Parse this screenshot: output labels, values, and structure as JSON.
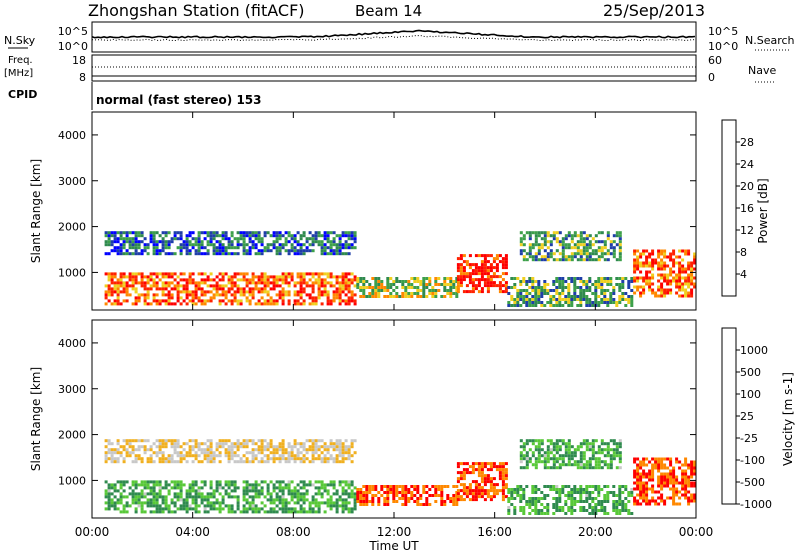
{
  "header": {
    "station": "Zhongshan Station (fitACF)",
    "beam": "Beam 14",
    "date": "25/Sep/2013"
  },
  "noise_panel": {
    "left_label": "N.Sky",
    "right_label": "N.Search",
    "left_ticks": [
      "10^5",
      "10^0"
    ],
    "right_ticks": [
      "10^5",
      "10^0"
    ]
  },
  "freq_panel": {
    "left_label_line1": "Freq.",
    "left_label_line2": "[MHz]",
    "right_label": "Nave",
    "left_ticks": [
      "18",
      "8"
    ],
    "right_ticks": [
      "60",
      "0"
    ]
  },
  "cpid": {
    "label": "CPID",
    "text": "normal (fast stereo) 153"
  },
  "power_panel": {
    "ylabel": "Slant Range [km]",
    "yticks": [
      "4000",
      "3000",
      "2000",
      "1000"
    ],
    "colorbar_label": "Power [dB]",
    "colorbar_ticks": [
      "28",
      "24",
      "20",
      "16",
      "12",
      "8",
      "4"
    ],
    "colors": [
      "#0000ff",
      "#1e3ea8",
      "#2f8a4e",
      "#3da04a",
      "#f0d020",
      "#ff8800",
      "#ff2200",
      "#ff0000"
    ]
  },
  "velocity_panel": {
    "ylabel": "Slant Range [km]",
    "yticks": [
      "4000",
      "3000",
      "2000",
      "1000"
    ],
    "colorbar_label": "Velocity [m s-1]",
    "colorbar_ticks": [
      "1000",
      "500",
      "100",
      "25",
      "-25",
      "-100",
      "-500",
      "-1000"
    ],
    "colors": [
      "#1e3ea8",
      "#2e5cb8",
      "#2f8a4e",
      "#58c838",
      "#c8c8c8",
      "#f0b020",
      "#ff8800",
      "#ff0000"
    ]
  },
  "x_axis": {
    "label": "Time UT",
    "ticks": [
      "00:00",
      "04:00",
      "08:00",
      "12:00",
      "16:00",
      "20:00",
      "00:00"
    ]
  },
  "chart_data": {
    "type": "heatmap",
    "x_range_hours": [
      0,
      24
    ],
    "y_range_km": [
      180,
      4500
    ],
    "power_colorbar_db": [
      4,
      8,
      12,
      16,
      20,
      24,
      28
    ],
    "velocity_colorbar_ms": [
      1000,
      500,
      100,
      25,
      -25,
      -100,
      -500,
      -1000
    ],
    "scatter_regions": [
      {
        "t_start": 0.5,
        "t_end": 10.5,
        "range_start": 300,
        "range_end": 1000,
        "power_db": 24,
        "velocity_ms": 100
      },
      {
        "t_start": 0.5,
        "t_end": 10.5,
        "range_start": 1400,
        "range_end": 1900,
        "power_db": 8,
        "velocity_ms": -25
      },
      {
        "t_start": 10.5,
        "t_end": 14.5,
        "range_start": 500,
        "range_end": 900,
        "power_db": 16,
        "velocity_ms": -500
      },
      {
        "t_start": 14.5,
        "t_end": 16.5,
        "range_start": 600,
        "range_end": 1400,
        "power_db": 28,
        "velocity_ms": -500
      },
      {
        "t_start": 16.5,
        "t_end": 21.5,
        "range_start": 300,
        "range_end": 900,
        "power_db": 12,
        "velocity_ms": 100
      },
      {
        "t_start": 17.0,
        "t_end": 21.0,
        "range_start": 1300,
        "range_end": 1900,
        "power_db": 12,
        "velocity_ms": 100
      },
      {
        "t_start": 21.5,
        "t_end": 24.0,
        "range_start": 500,
        "range_end": 1500,
        "power_db": 24,
        "velocity_ms": -500
      }
    ]
  }
}
